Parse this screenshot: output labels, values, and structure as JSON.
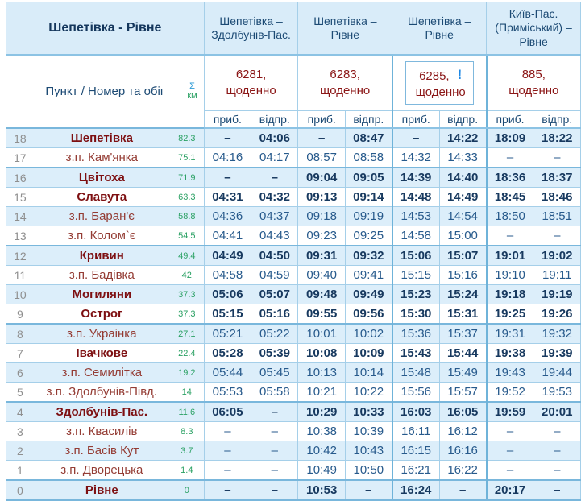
{
  "table": {
    "title": "Шепетівка - Рівне",
    "punkt_header": "Пункт / Номер та обіг",
    "sigma_symbol": "Σ",
    "km_label": "км",
    "arr_label": "приб.",
    "dep_label": "відпр.",
    "dash": "–",
    "trains": [
      {
        "route": "Шепетівка – Здолбунів-Пас.",
        "number": "6281,",
        "frequency": "щоденно",
        "highlighted": false
      },
      {
        "route": "Шепетівка – Рівне",
        "number": "6283,",
        "frequency": "щоденно",
        "highlighted": false
      },
      {
        "route": "Шепетівка – Рівне",
        "number": "6285,",
        "frequency": "щоденно",
        "highlighted": true,
        "alert_icon": "!"
      },
      {
        "route": "Київ-Пас. (Приміський) – Рівне",
        "number": "885,",
        "frequency": "щоденно",
        "highlighted": false
      }
    ],
    "rows": [
      {
        "num": "18",
        "station": "Шепетівка",
        "km": "82.3",
        "major": true,
        "times": [
          "–",
          "04:06",
          "–",
          "08:47",
          "–",
          "14:22",
          "18:09",
          "18:22"
        ]
      },
      {
        "num": "17",
        "station": "з.п. Кам'янка",
        "km": "75.1",
        "major": false,
        "times": [
          "04:16",
          "04:17",
          "08:57",
          "08:58",
          "14:32",
          "14:33",
          "–",
          "–"
        ]
      },
      {
        "num": "16",
        "station": "Цвітоха",
        "km": "71.9",
        "major": true,
        "times": [
          "–",
          "–",
          "09:04",
          "09:05",
          "14:39",
          "14:40",
          "18:36",
          "18:37"
        ]
      },
      {
        "num": "15",
        "station": "Славута",
        "km": "63.3",
        "major": true,
        "times": [
          "04:31",
          "04:32",
          "09:13",
          "09:14",
          "14:48",
          "14:49",
          "18:45",
          "18:46"
        ]
      },
      {
        "num": "14",
        "station": "з.п. Баран'є",
        "km": "58.8",
        "major": false,
        "times": [
          "04:36",
          "04:37",
          "09:18",
          "09:19",
          "14:53",
          "14:54",
          "18:50",
          "18:51"
        ]
      },
      {
        "num": "13",
        "station": "з.п. Колом`є",
        "km": "54.5",
        "major": false,
        "times": [
          "04:41",
          "04:43",
          "09:23",
          "09:25",
          "14:58",
          "15:00",
          "–",
          "–"
        ]
      },
      {
        "num": "12",
        "station": "Кривин",
        "km": "49.4",
        "major": true,
        "times": [
          "04:49",
          "04:50",
          "09:31",
          "09:32",
          "15:06",
          "15:07",
          "19:01",
          "19:02"
        ]
      },
      {
        "num": "11",
        "station": "з.п. Бадівка",
        "km": "42",
        "major": false,
        "times": [
          "04:58",
          "04:59",
          "09:40",
          "09:41",
          "15:15",
          "15:16",
          "19:10",
          "19:11"
        ]
      },
      {
        "num": "10",
        "station": "Могиляни",
        "km": "37.3",
        "major": true,
        "times": [
          "05:06",
          "05:07",
          "09:48",
          "09:49",
          "15:23",
          "15:24",
          "19:18",
          "19:19"
        ]
      },
      {
        "num": "9",
        "station": "Острог",
        "km": "37.3",
        "major": true,
        "times": [
          "05:15",
          "05:16",
          "09:55",
          "09:56",
          "15:30",
          "15:31",
          "19:25",
          "19:26"
        ]
      },
      {
        "num": "8",
        "station": "з.п. Украінка",
        "km": "27.1",
        "major": false,
        "times": [
          "05:21",
          "05:22",
          "10:01",
          "10:02",
          "15:36",
          "15:37",
          "19:31",
          "19:32"
        ]
      },
      {
        "num": "7",
        "station": "Івачкове",
        "km": "22.4",
        "major": true,
        "times": [
          "05:28",
          "05:39",
          "10:08",
          "10:09",
          "15:43",
          "15:44",
          "19:38",
          "19:39"
        ]
      },
      {
        "num": "6",
        "station": "з.п. Семилітка",
        "km": "19.2",
        "major": false,
        "times": [
          "05:44",
          "05:45",
          "10:13",
          "10:14",
          "15:48",
          "15:49",
          "19:43",
          "19:44"
        ]
      },
      {
        "num": "5",
        "station": "з.п. Здолбунів-Півд.",
        "km": "14",
        "major": false,
        "times": [
          "05:53",
          "05:58",
          "10:21",
          "10:22",
          "15:56",
          "15:57",
          "19:52",
          "19:53"
        ]
      },
      {
        "num": "4",
        "station": "Здолбунів-Пас.",
        "km": "11.6",
        "major": true,
        "times": [
          "06:05",
          "–",
          "10:29",
          "10:33",
          "16:03",
          "16:05",
          "19:59",
          "20:01"
        ]
      },
      {
        "num": "3",
        "station": "з.п. Квасилів",
        "km": "8.3",
        "major": false,
        "times": [
          "–",
          "–",
          "10:38",
          "10:39",
          "16:11",
          "16:12",
          "–",
          "–"
        ]
      },
      {
        "num": "2",
        "station": "з.п. Басів Кут",
        "km": "3.7",
        "major": false,
        "times": [
          "–",
          "–",
          "10:42",
          "10:43",
          "16:15",
          "16:16",
          "–",
          "–"
        ]
      },
      {
        "num": "1",
        "station": "з.п. Дворецька",
        "km": "1.4",
        "major": false,
        "times": [
          "–",
          "–",
          "10:49",
          "10:50",
          "16:21",
          "16:22",
          "–",
          "–"
        ]
      },
      {
        "num": "0",
        "station": "Рівне",
        "km": "0",
        "major": true,
        "times": [
          "–",
          "–",
          "10:53",
          "–",
          "16:24",
          "–",
          "20:17",
          "–"
        ]
      }
    ]
  },
  "colors": {
    "header_bg": "#d9ecf9",
    "even_row_bg": "#dceefa",
    "border": "#a5cfe9",
    "border_strong": "#79b7dc",
    "navy_text": "#17395f",
    "station_major": "#7d0f11",
    "station_minor": "#943c34",
    "train_number": "#8b1616",
    "distance_green": "#2ba164",
    "row_number_gray": "#8f8f8f",
    "alert_blue": "#1e88e5"
  }
}
